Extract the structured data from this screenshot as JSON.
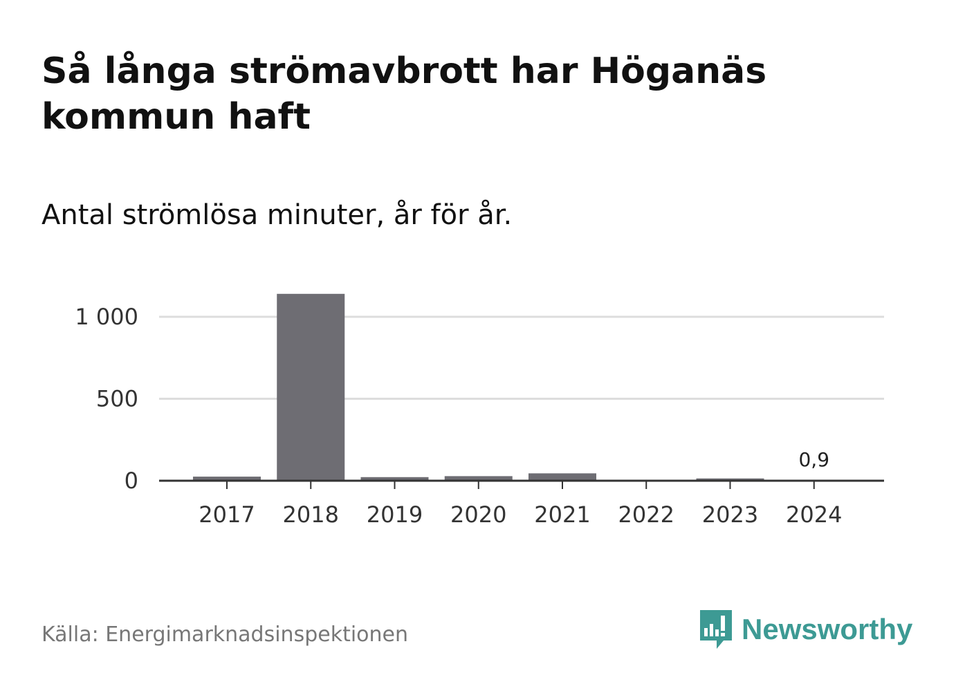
{
  "title": "Så långa strömavbrott har Höganäs kommun haft",
  "subtitle": "Antal strömlösa minuter, år för år.",
  "source": "Källa: Energimarknadsinspektionen",
  "brand": {
    "name": "Newsworthy",
    "color": "#3d9a94",
    "icon": "chart-speech-bubble-icon"
  },
  "colors": {
    "bar": "#6e6d73",
    "grid": "#dddddd",
    "axis": "#333333"
  },
  "chart_data": {
    "type": "bar",
    "categories": [
      "2017",
      "2018",
      "2019",
      "2020",
      "2021",
      "2022",
      "2023",
      "2024"
    ],
    "values": [
      25,
      1140,
      22,
      28,
      45,
      3,
      14,
      0.9
    ],
    "ylim": [
      0,
      1150
    ],
    "yticks": [
      0,
      500,
      1000
    ],
    "ytick_labels": [
      "0",
      "500",
      "1 000"
    ],
    "grid": true,
    "data_labels": [
      {
        "category": "2024",
        "text": "0,9"
      }
    ]
  }
}
